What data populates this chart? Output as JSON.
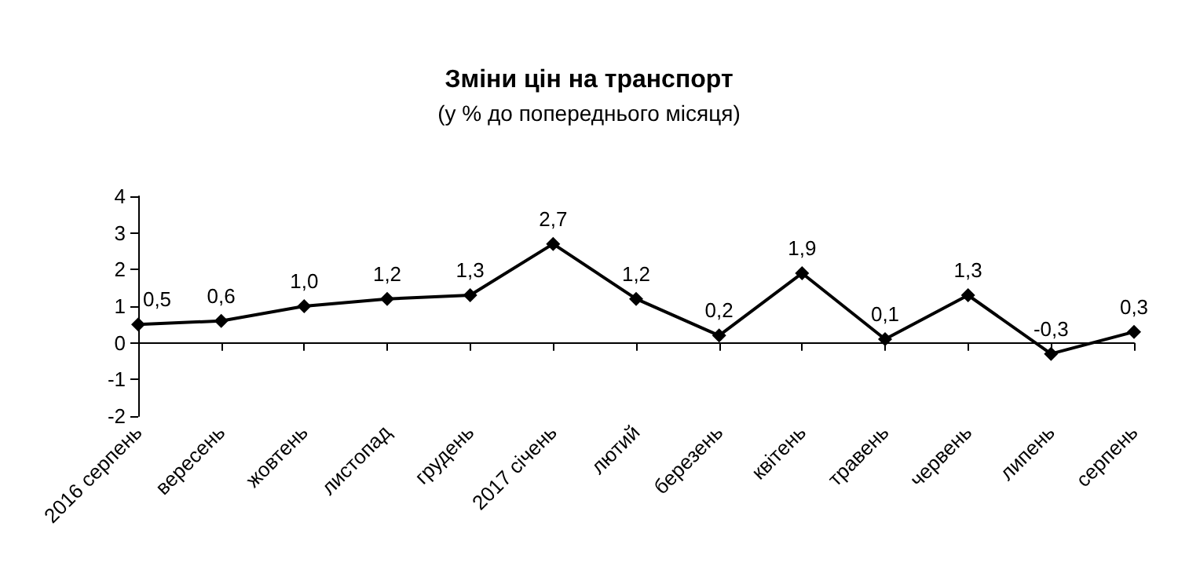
{
  "chart_data": {
    "type": "line",
    "title": "Зміни цін на транспорт",
    "subtitle": "(у % до попереднього місяця)",
    "categories": [
      "2016 серпень",
      "вересень",
      "жовтень",
      "листопад",
      "грудень",
      "2017 січень",
      "лютий",
      "березень",
      "квітень",
      "травень",
      "червень",
      "липень",
      "серпень"
    ],
    "series": [
      {
        "color": "#000000",
        "values": [
          0.5,
          0.6,
          1.0,
          1.2,
          1.3,
          2.7,
          1.2,
          0.2,
          1.9,
          0.1,
          1.3,
          -0.3,
          0.3
        ],
        "value_labels": [
          "0,5",
          "0,6",
          "1,0",
          "1,2",
          "1,3",
          "2,7",
          "1,2",
          "0,2",
          "1,9",
          "0,1",
          "1,3",
          "-0,3",
          "0,3"
        ]
      }
    ],
    "ylim": [
      -2,
      4
    ],
    "yticks": [
      -2,
      -1,
      0,
      1,
      2,
      3,
      4
    ],
    "marker": "diamond",
    "line_style": "solid"
  }
}
